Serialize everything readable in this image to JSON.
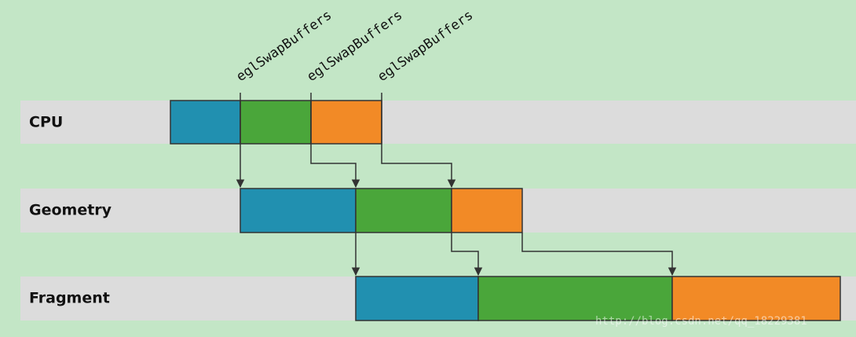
{
  "lanes": [
    {
      "label": "CPU"
    },
    {
      "label": "Geometry"
    },
    {
      "label": "Fragment"
    }
  ],
  "markers": [
    {
      "label": "eglSwapBuffers"
    },
    {
      "label": "eglSwapBuffers"
    },
    {
      "label": "eglSwapBuffers"
    }
  ],
  "watermark": "http://blog.csdn.net/qq_18229381"
}
